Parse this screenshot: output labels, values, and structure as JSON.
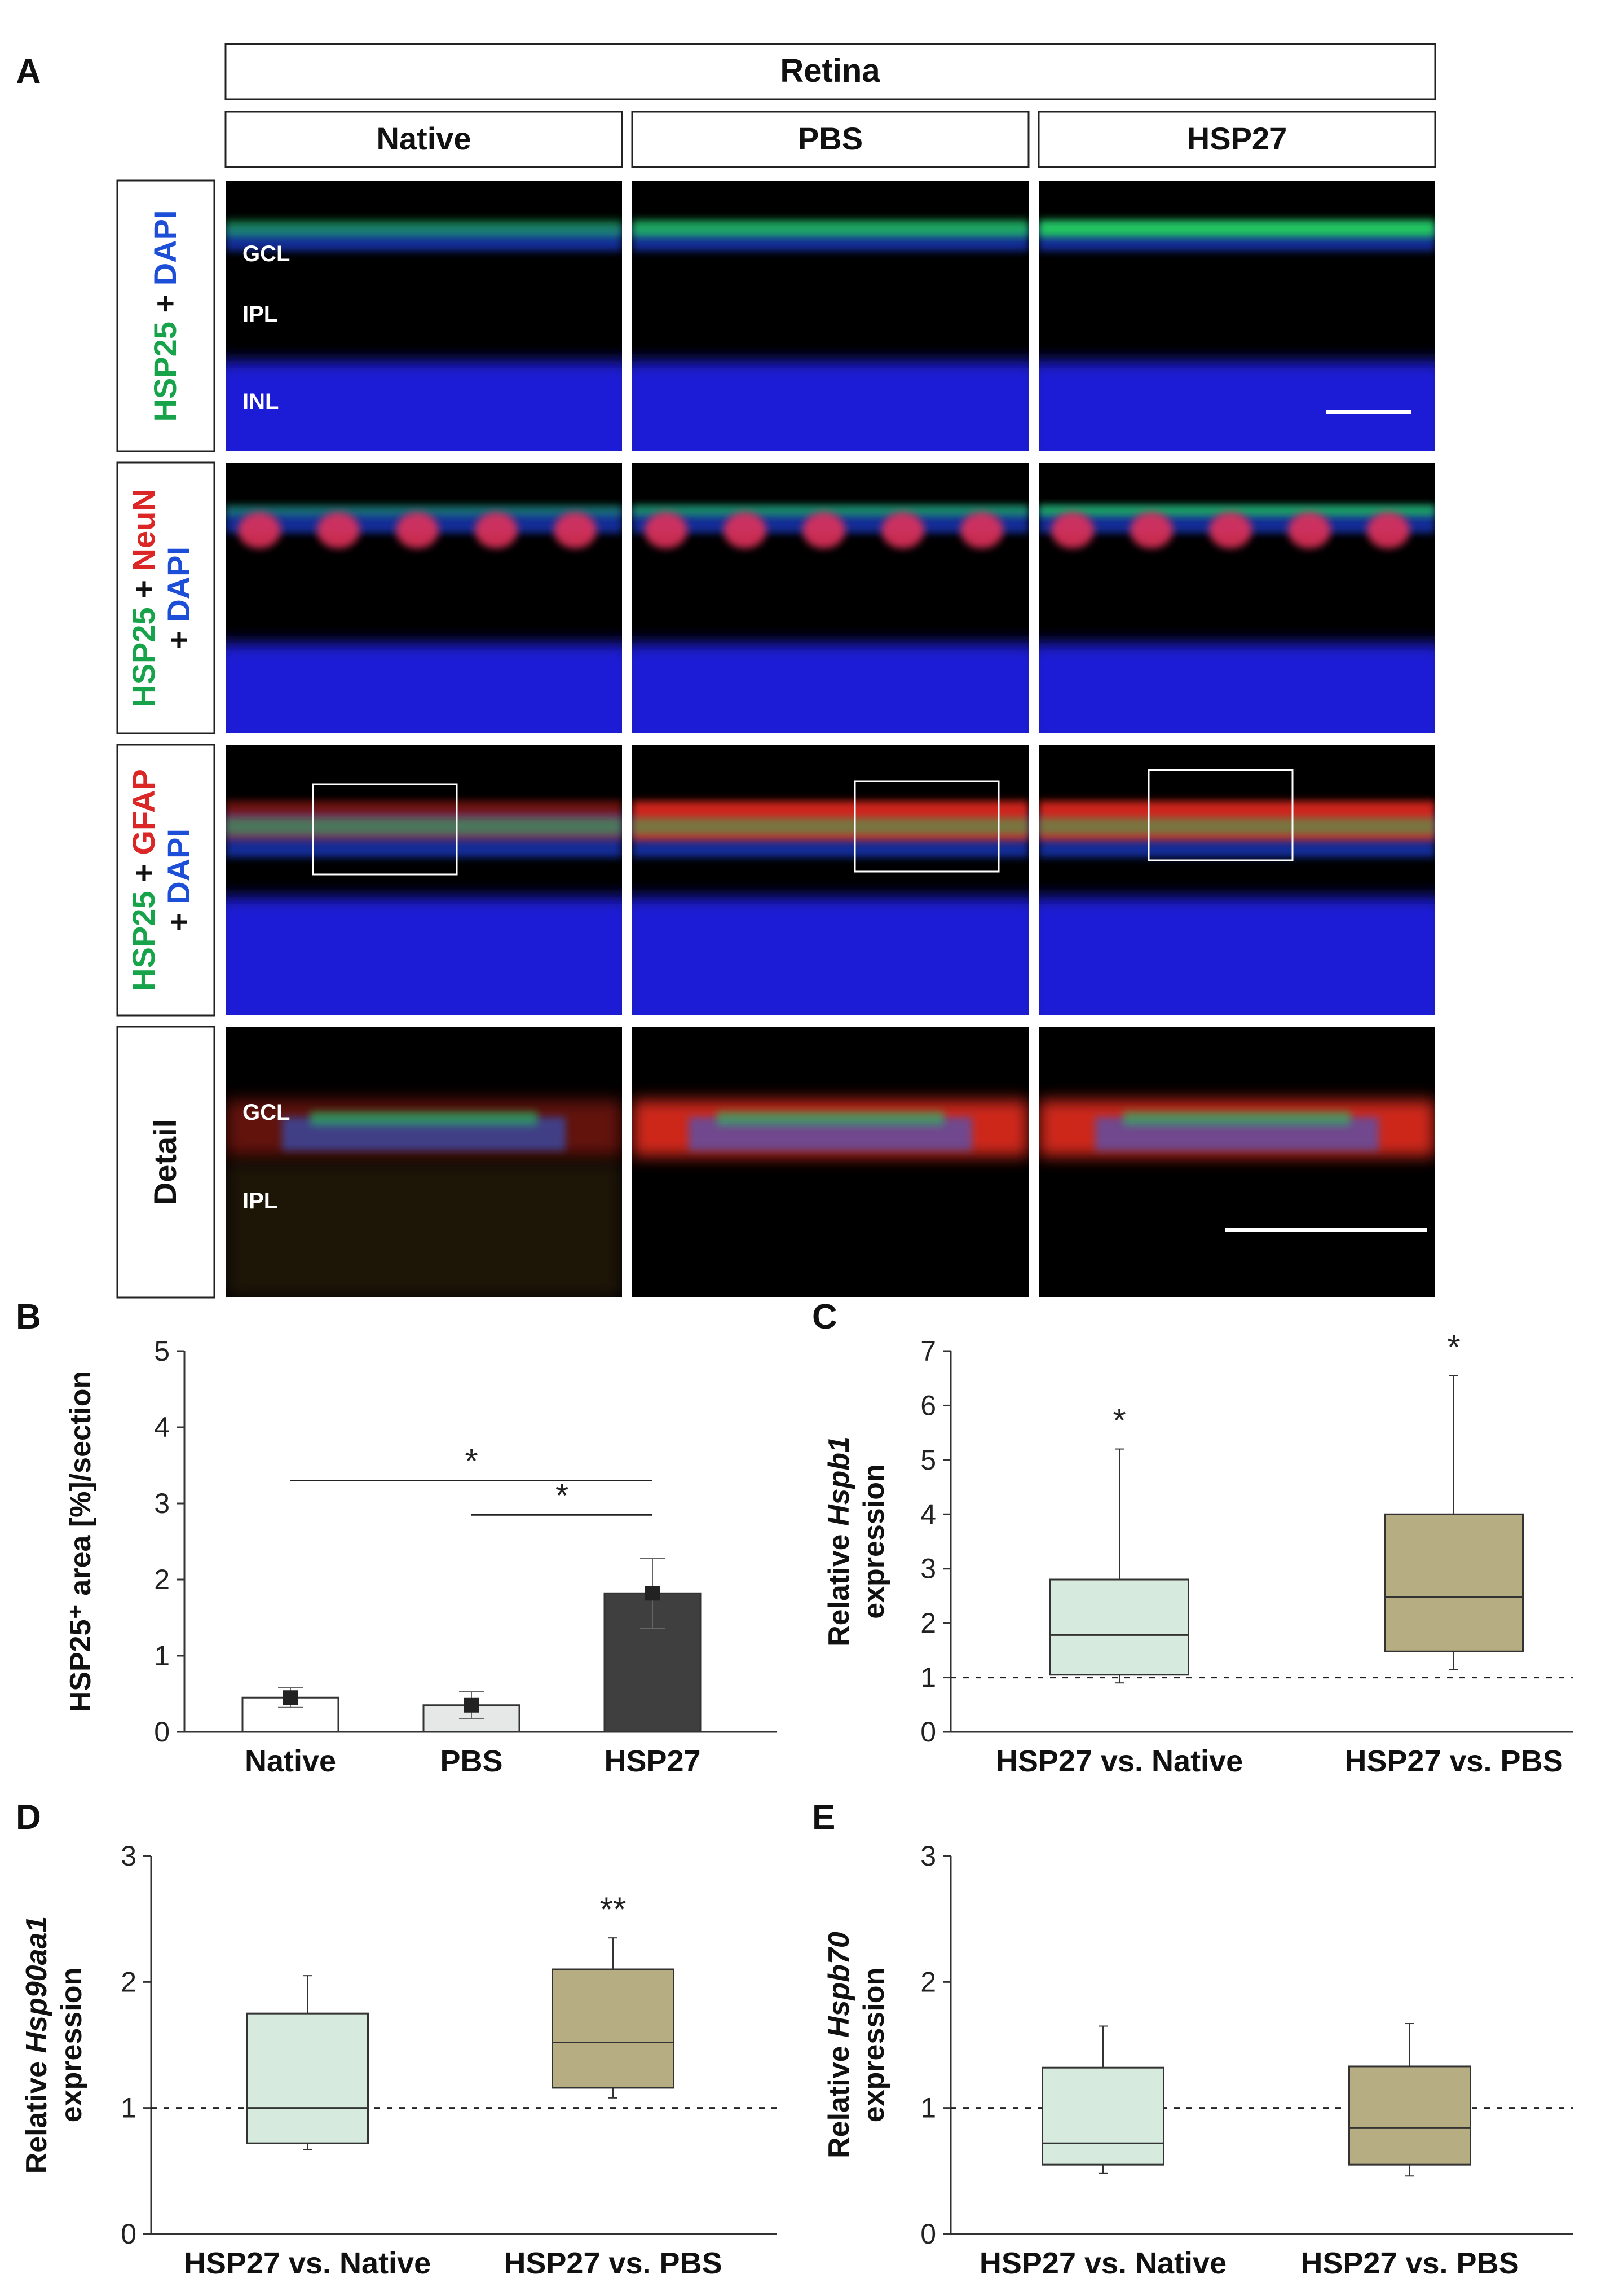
{
  "panels": {
    "A": "A",
    "B": "B",
    "C": "C",
    "D": "D",
    "E": "E"
  },
  "panel_a": {
    "tissue": "Retina",
    "columns": [
      "Native",
      "PBS",
      "HSP27"
    ],
    "rows": [
      {
        "parts": [
          {
            "t": "HSP25",
            "c": "#17a34a"
          },
          {
            "t": " + ",
            "c": "#111111"
          },
          {
            "t": "DAPI",
            "c": "#1d4ed8"
          }
        ]
      },
      {
        "parts": [
          {
            "t": "HSP25",
            "c": "#17a34a"
          },
          {
            "t": " + ",
            "c": "#111111"
          },
          {
            "t": "NeuN",
            "c": "#dc2626"
          }
        ],
        "line2": [
          {
            "t": "+ ",
            "c": "#111111"
          },
          {
            "t": "DAPI",
            "c": "#1d4ed8"
          }
        ]
      },
      {
        "parts": [
          {
            "t": "HSP25",
            "c": "#17a34a"
          },
          {
            "t": " + ",
            "c": "#111111"
          },
          {
            "t": "GFAP",
            "c": "#dc2626"
          }
        ],
        "line2": [
          {
            "t": "+ ",
            "c": "#111111"
          },
          {
            "t": "DAPI",
            "c": "#1d4ed8"
          }
        ]
      },
      {
        "parts": [
          {
            "t": "Detail",
            "c": "#111111"
          }
        ]
      }
    ],
    "layer_labels": {
      "gcl": "GCL",
      "ipl": "IPL",
      "inl": "INL"
    }
  },
  "chart_data": [
    {
      "panel": "B",
      "type": "bar",
      "categories": [
        "Native",
        "PBS",
        "HSP27"
      ],
      "values": [
        0.45,
        0.35,
        1.82
      ],
      "errors": [
        0.13,
        0.18,
        0.46
      ],
      "bar_colors": [
        "#ffffff",
        "#e6e7e7",
        "#3f3f3f"
      ],
      "ylabel": "HSP25⁺ area [%]/section",
      "ylim": [
        0,
        5
      ],
      "yticks": [
        0,
        1,
        2,
        3,
        4,
        5
      ],
      "significance": [
        {
          "from": "Native",
          "to": "HSP27",
          "label": "*",
          "y": 3.3
        },
        {
          "from": "PBS",
          "to": "HSP27",
          "label": "*",
          "y": 2.85
        }
      ]
    },
    {
      "panel": "C",
      "type": "box",
      "categories": [
        "HSP27 vs. Native",
        "HSP27 vs. PBS"
      ],
      "boxes": [
        {
          "min": 0.9,
          "q1": 1.05,
          "median": 1.78,
          "q3": 2.8,
          "max": 5.2,
          "label": "*"
        },
        {
          "min": 1.15,
          "q1": 1.48,
          "median": 2.48,
          "q3": 4.0,
          "max": 6.55,
          "label": "*"
        }
      ],
      "box_colors": [
        "#d6eadd",
        "#b6ad82"
      ],
      "ylabel_prefix": "Relative ",
      "ylabel_gene": "Hspb1",
      "ylabel_suffix": "expression",
      "ylim": [
        0,
        7
      ],
      "yticks": [
        0,
        1,
        2,
        3,
        4,
        5,
        6,
        7
      ],
      "reference_line": 1
    },
    {
      "panel": "D",
      "type": "box",
      "categories": [
        "HSP27 vs. Native",
        "HSP27 vs. PBS"
      ],
      "boxes": [
        {
          "min": 0.67,
          "q1": 0.72,
          "median": 1.0,
          "q3": 1.75,
          "max": 2.05,
          "label": ""
        },
        {
          "min": 1.08,
          "q1": 1.16,
          "median": 1.52,
          "q3": 2.1,
          "max": 2.35,
          "label": "**"
        }
      ],
      "box_colors": [
        "#d6eadd",
        "#b6ad82"
      ],
      "ylabel_prefix": "Relative ",
      "ylabel_gene": "Hsp90aa1",
      "ylabel_suffix": "expression",
      "ylim": [
        0,
        3
      ],
      "yticks": [
        0,
        1,
        2,
        3
      ],
      "reference_line": 1
    },
    {
      "panel": "E",
      "type": "box",
      "categories": [
        "HSP27 vs. Native",
        "HSP27 vs. PBS"
      ],
      "boxes": [
        {
          "min": 0.48,
          "q1": 0.55,
          "median": 0.72,
          "q3": 1.32,
          "max": 1.65,
          "label": ""
        },
        {
          "min": 0.46,
          "q1": 0.55,
          "median": 0.84,
          "q3": 1.33,
          "max": 1.67,
          "label": ""
        }
      ],
      "box_colors": [
        "#d6eadd",
        "#b6ad82"
      ],
      "ylabel_prefix": "Relative ",
      "ylabel_gene": "Hspb70",
      "ylabel_suffix": "expression",
      "ylim": [
        0,
        3
      ],
      "yticks": [
        0,
        1,
        2,
        3
      ],
      "reference_line": 1
    }
  ]
}
